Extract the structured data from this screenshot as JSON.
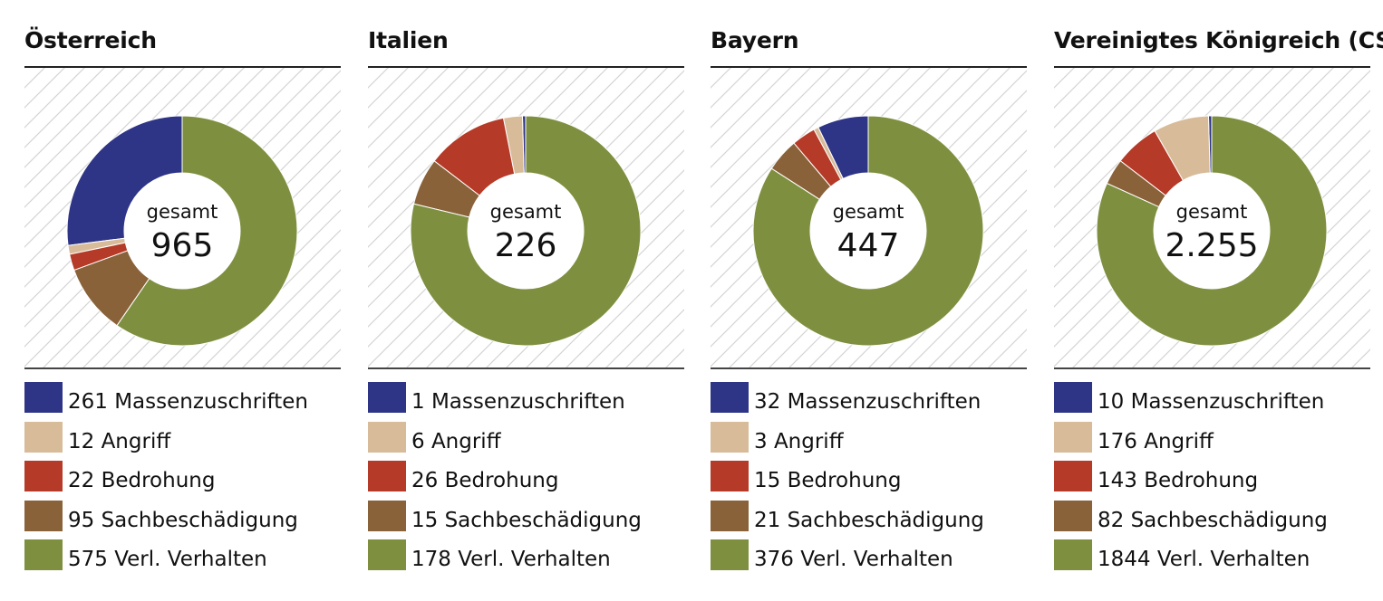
{
  "colors": {
    "Massenzuschriften": "#2e3586",
    "Angriff": "#d8bc9a",
    "Bedrohung": "#b53a27",
    "Sachbeschädigung": "#8a6239",
    "Verl. Verhalten": "#7e9040"
  },
  "center_caption": "gesamt",
  "chart_data": [
    {
      "type": "pie",
      "title": "Österreich",
      "total": "965",
      "categories": [
        "Massenzuschriften",
        "Angriff",
        "Bedrohung",
        "Sachbeschädigung",
        "Verl. Verhalten"
      ],
      "values": [
        261,
        12,
        22,
        95,
        575
      ],
      "legend_labels": [
        "261 Massenzuschriften",
        "12 Angriff",
        "22 Bedrohung",
        "95 Sachbeschädigung",
        "575 Verl. Verhalten"
      ]
    },
    {
      "type": "pie",
      "title": "Italien",
      "total": "226",
      "categories": [
        "Massenzuschriften",
        "Angriff",
        "Bedrohung",
        "Sachbeschädigung",
        "Verl. Verhalten"
      ],
      "values": [
        1,
        6,
        26,
        15,
        178
      ],
      "legend_labels": [
        "1 Massenzuschriften",
        "6 Angriff",
        "26 Bedrohung",
        "15 Sachbeschädigung",
        "178 Verl. Verhalten"
      ]
    },
    {
      "type": "pie",
      "title": "Bayern",
      "total": "447",
      "categories": [
        "Massenzuschriften",
        "Angriff",
        "Bedrohung",
        "Sachbeschädigung",
        "Verl. Verhalten"
      ],
      "values": [
        32,
        3,
        15,
        21,
        376
      ],
      "legend_labels": [
        "32 Massenzuschriften",
        "3 Angriff",
        "15 Bedrohung",
        "21 Sachbeschädigung",
        "376 Verl. Verhalten"
      ]
    },
    {
      "type": "pie",
      "title": "Vereinigtes Königreich (CST)",
      "total": "2.255",
      "categories": [
        "Massenzuschriften",
        "Angriff",
        "Bedrohung",
        "Sachbeschädigung",
        "Verl. Verhalten"
      ],
      "values": [
        10,
        176,
        143,
        82,
        1844
      ],
      "legend_labels": [
        "10 Massenzuschriften",
        "176 Angriff",
        "143 Bedrohung",
        "82 Sachbeschädigung",
        "1844 Verl. Verhalten"
      ]
    }
  ]
}
